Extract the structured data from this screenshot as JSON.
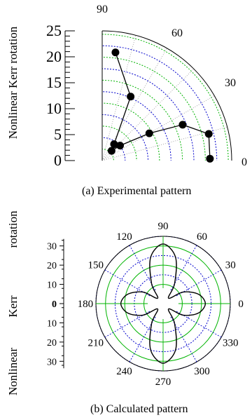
{
  "chart_data": [
    {
      "type": "scatter",
      "coordinate_system": "polar",
      "title": "(a) Experimental pattern",
      "ylabel": "Nonlinear Kerr rotation",
      "r_range": [
        0,
        25
      ],
      "r_ticks": [
        "0",
        "5",
        "10",
        "15",
        "20",
        "25"
      ],
      "angle_range": [
        0,
        90
      ],
      "angle_labels": [
        "0",
        "30",
        "60",
        "90"
      ],
      "grid": true,
      "points": [
        {
          "theta": 1,
          "r": 20.8
        },
        {
          "theta": 14,
          "r": 21.2
        },
        {
          "theta": 24,
          "r": 17.0
        },
        {
          "theta": 30,
          "r": 10.5
        },
        {
          "theta": 40,
          "r": 4.5
        },
        {
          "theta": 46,
          "r": 2.6
        },
        {
          "theta": 54,
          "r": 3.9
        },
        {
          "theta": 66,
          "r": 13.5
        },
        {
          "theta": 83,
          "r": 21.0
        }
      ],
      "marker_color": "#000000",
      "line_color": "#000000"
    },
    {
      "type": "line",
      "coordinate_system": "polar",
      "title": "(b) Calculated pattern",
      "ylabel": "Nonlinear Kerr rotation",
      "r_range": [
        0,
        35
      ],
      "r_ticks": [
        "30",
        "20",
        "10",
        "0",
        "10",
        "20",
        "30"
      ],
      "angle_labels": [
        "0",
        "30",
        "60",
        "90",
        "120",
        "150",
        "180",
        "210",
        "240",
        "270",
        "300",
        "330"
      ],
      "grid": true,
      "series": [
        {
          "theta": [
            0,
            15,
            30,
            45,
            60,
            75,
            90,
            105,
            120,
            135,
            150,
            165,
            180,
            195,
            210,
            225,
            240,
            255,
            270,
            285,
            300,
            315,
            330,
            345
          ],
          "r": [
            22,
            19,
            12,
            4,
            12,
            25,
            31,
            25,
            12,
            4,
            12,
            19,
            22,
            19,
            12,
            4,
            12,
            25,
            31,
            25,
            12,
            4,
            12,
            19
          ]
        }
      ],
      "grid_colors": {
        "green": "#00b400",
        "blue": "#0000cc"
      }
    }
  ]
}
